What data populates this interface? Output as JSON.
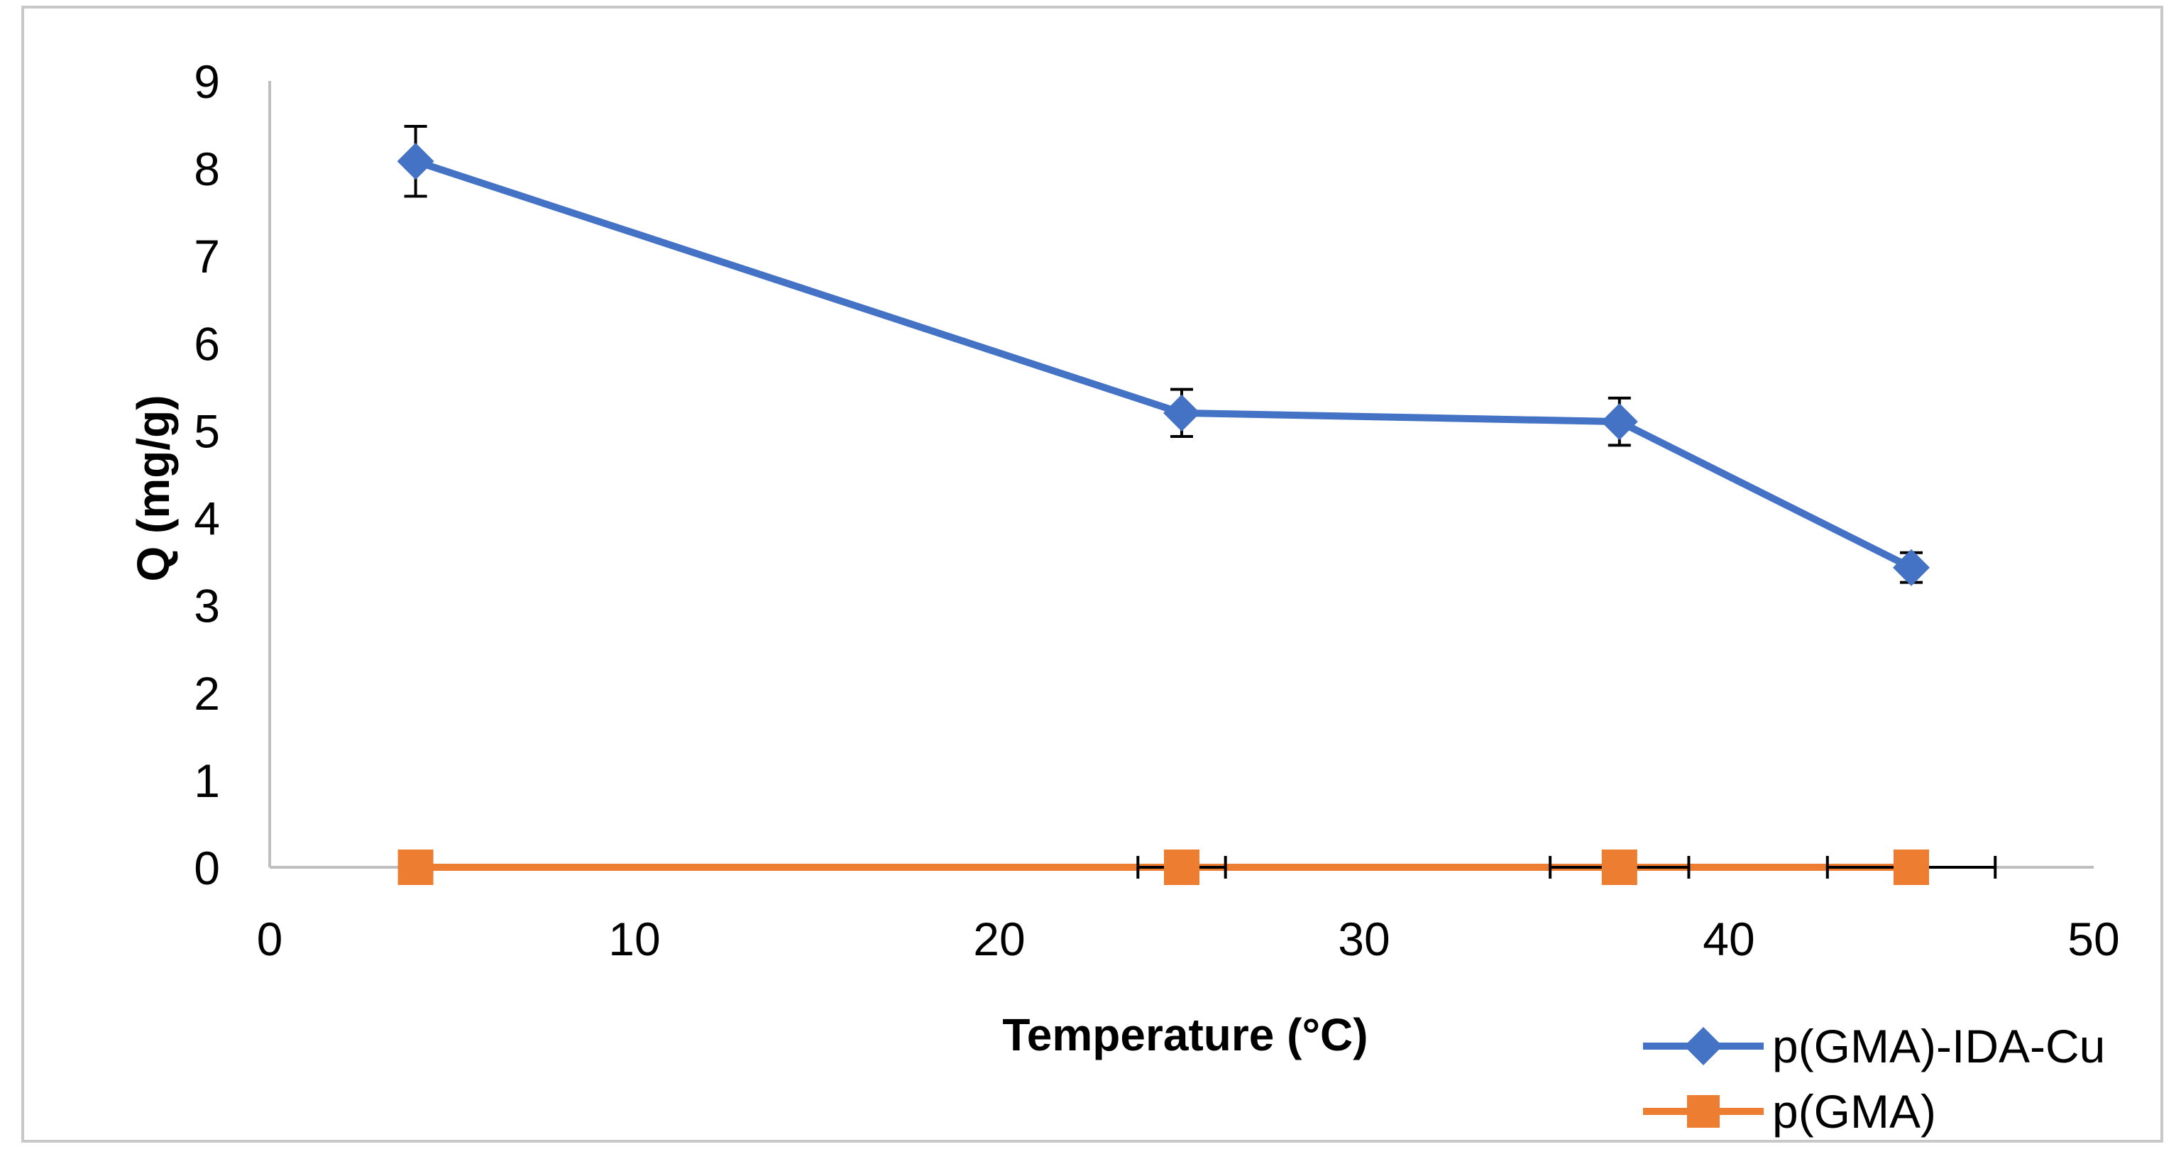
{
  "chart_data": {
    "type": "line",
    "title": "",
    "xlabel": "Temperature (°C)",
    "ylabel": "Q (mg/g)",
    "xlim": [
      0,
      50
    ],
    "ylim": [
      0,
      9
    ],
    "xticks": [
      "0",
      "10",
      "20",
      "30",
      "40",
      "50"
    ],
    "yticks": [
      "0",
      "1",
      "2",
      "3",
      "4",
      "5",
      "6",
      "7",
      "8",
      "9"
    ],
    "grid": false,
    "legend_position": "bottom-right",
    "series": [
      {
        "name": "p(GMA)-IDA-Cu",
        "color": "#4472C4",
        "marker": "diamond",
        "x": [
          4,
          25,
          37,
          45
        ],
        "y": [
          8.08,
          5.2,
          5.1,
          3.43
        ],
        "error": [
          0.4,
          0.27,
          0.27,
          0.17
        ]
      },
      {
        "name": "p(GMA)",
        "color": "#ED7D31",
        "marker": "square",
        "x": [
          4,
          25,
          37,
          45
        ],
        "y": [
          0,
          0,
          0,
          0
        ],
        "xerror": [
          0,
          1.2,
          1.9,
          2.3
        ]
      }
    ]
  }
}
